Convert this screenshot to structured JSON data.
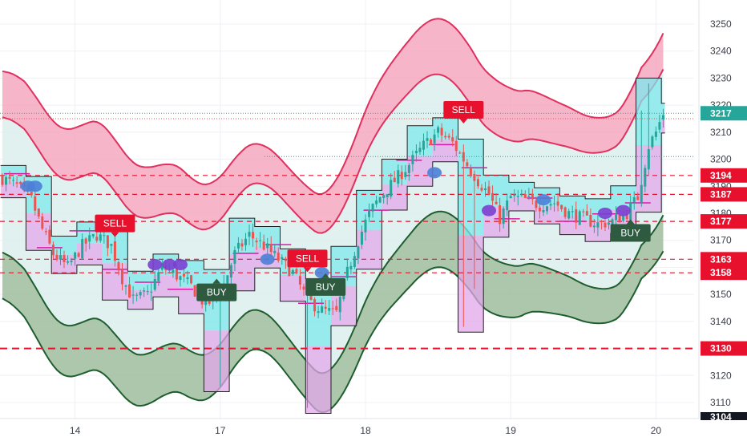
{
  "chart_data": {
    "type": "candlestick",
    "title": "",
    "xlabel": "",
    "ylabel": "",
    "ylim": [
      3100,
      3260
    ],
    "y_ticks": [
      3110,
      3120,
      3130,
      3140,
      3150,
      3160,
      3170,
      3180,
      3190,
      3200,
      3210,
      3220,
      3230,
      3240,
      3250
    ],
    "x_ticks": [
      "14",
      "17",
      "18",
      "19",
      "20"
    ],
    "x_tick_index": [
      20,
      60,
      100,
      140,
      180
    ],
    "grid": true,
    "last_price": 3217,
    "last_price_color": "#26a69a",
    "bottom_axis_stub": "3104",
    "price_levels": [
      {
        "value": 3194,
        "label": "3194",
        "color": "#e8112d",
        "style": "dashed"
      },
      {
        "value": 3187,
        "label": "3187",
        "color": "#e8112d",
        "style": "dashed"
      },
      {
        "value": 3177,
        "label": "3177",
        "color": "#e8112d",
        "style": "dashed"
      },
      {
        "value": 3163,
        "label": "3163",
        "color": "#e8112d",
        "style": "dashed"
      },
      {
        "value": 3158,
        "label": "3158",
        "color": "#e8112d",
        "style": "dashed"
      },
      {
        "value": 3130,
        "label": "3130",
        "color": "#e8112d",
        "style": "dashed-thick"
      }
    ],
    "signals": [
      {
        "type": "SELL",
        "label": "SELL",
        "x": 31,
        "price": 3173,
        "color": "#e8112d"
      },
      {
        "type": "SELL",
        "label": "SELL",
        "x": 84,
        "price": 3160,
        "color": "#e8112d"
      },
      {
        "type": "SELL",
        "label": "SELL",
        "x": 127,
        "price": 3215,
        "color": "#e8112d"
      },
      {
        "type": "BUY",
        "label": "BUY",
        "x": 59,
        "price": 3154,
        "color": "#2e5b3f"
      },
      {
        "type": "BUY",
        "label": "BUY",
        "x": 89,
        "price": 3156,
        "color": "#2e5b3f"
      },
      {
        "type": "BUY",
        "label": "BUY",
        "x": 173,
        "price": 3176,
        "color": "#2e5b3f"
      }
    ],
    "colors": {
      "up": "#26a69a",
      "down": "#ef5350",
      "upper_band_fill": "#f5a3bd",
      "upper_band_line": "#e0305f",
      "lower_band_fill": "#9fbd9f",
      "lower_band_line": "#1e5e2e",
      "cloud_cyan": "#7de8ec",
      "cloud_magenta": "#e2a7ea",
      "inner_channel": "#dceeed",
      "dot_blue": "#4b7fd6",
      "dot_purple": "#7a3fd0",
      "marker_magenta": "#d81ba5"
    },
    "series": [
      {
        "name": "",
        "kind": "ohlc",
        "candles": []
      }
    ]
  }
}
